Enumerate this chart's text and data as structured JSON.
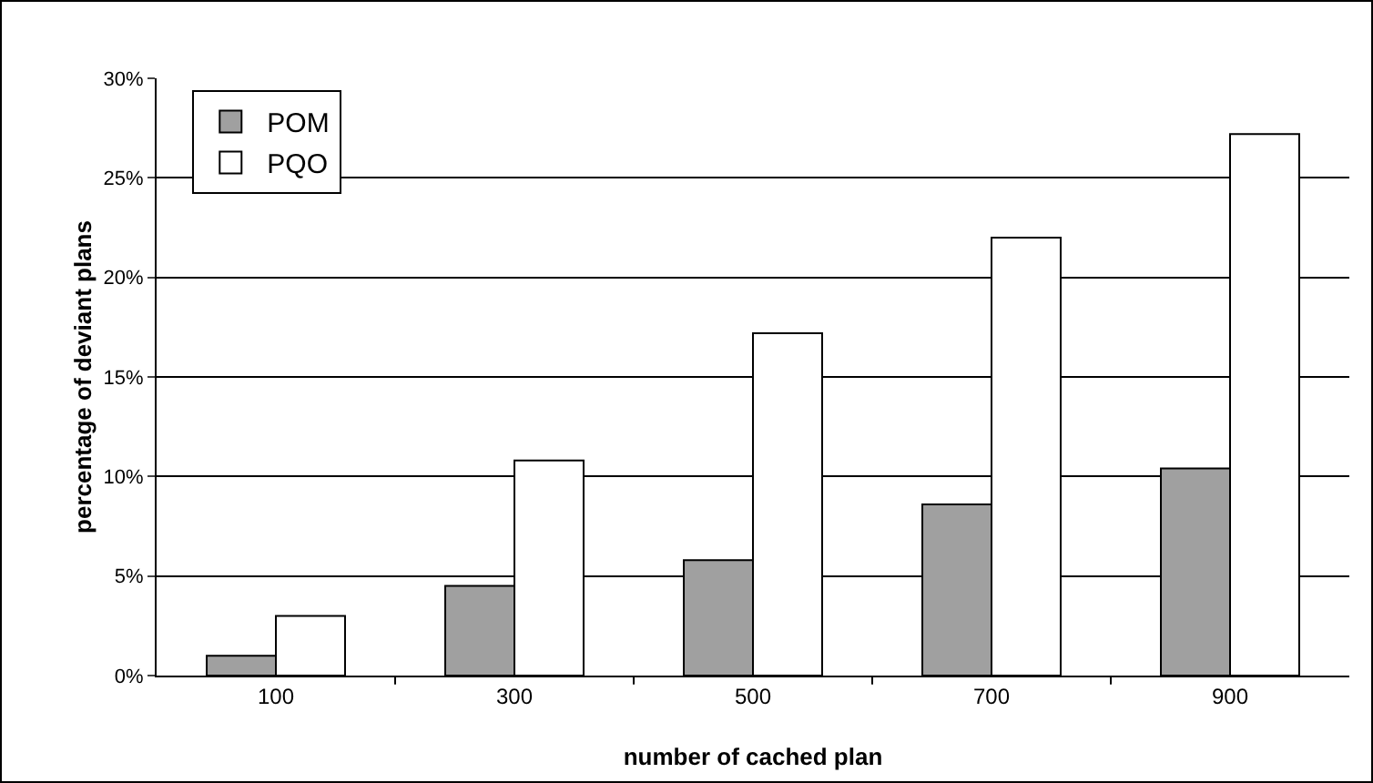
{
  "chart_data": {
    "type": "bar",
    "xlabel": "number of cached plan",
    "ylabel": "percentage of deviant plans",
    "categories": [
      "100",
      "300",
      "500",
      "700",
      "900"
    ],
    "series": [
      {
        "name": "POM",
        "color": "#a0a0a0",
        "values": [
          1.0,
          4.5,
          5.8,
          8.6,
          10.4
        ]
      },
      {
        "name": "PQO",
        "color": "#ffffff",
        "values": [
          3.0,
          10.8,
          17.2,
          22.0,
          27.2
        ]
      }
    ],
    "ylim": [
      0,
      30
    ],
    "yticks": [
      {
        "value": 0,
        "label": "0%"
      },
      {
        "value": 5,
        "label": "5%"
      },
      {
        "value": 10,
        "label": "10%"
      },
      {
        "value": 15,
        "label": "15%"
      },
      {
        "value": 20,
        "label": "20%"
      },
      {
        "value": 25,
        "label": "25%"
      },
      {
        "value": 30,
        "label": "30%"
      }
    ],
    "grid": "y",
    "legend": "top left"
  }
}
